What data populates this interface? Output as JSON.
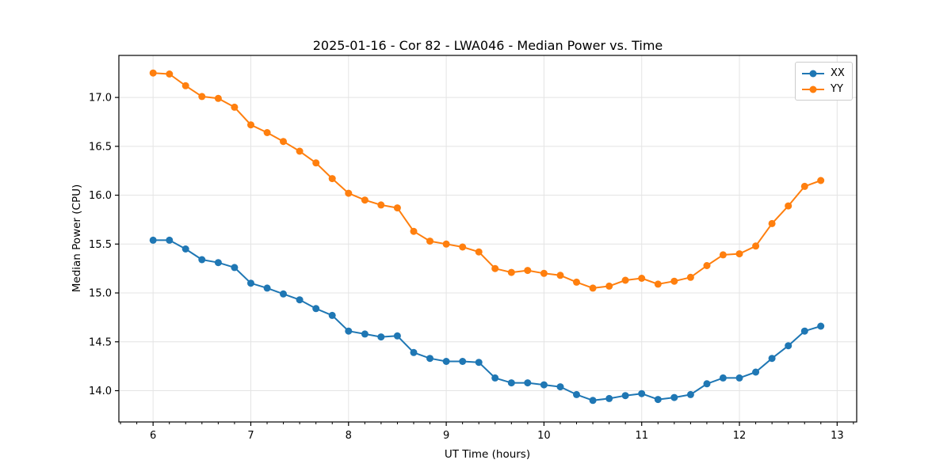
{
  "chart_data": {
    "type": "line",
    "title": "2025-01-16 - Cor 82 - LWA046 - Median Power vs. Time",
    "xlabel": "UT Time (hours)",
    "ylabel": "Median Power (CPU)",
    "xlim": [
      5.65,
      13.2
    ],
    "ylim": [
      13.68,
      17.43
    ],
    "grid": true,
    "legend_position": "upper right",
    "marker": "o",
    "x_ticks": [
      6,
      7,
      8,
      9,
      10,
      11,
      12,
      13
    ],
    "x_tick_labels": [
      "6",
      "7",
      "8",
      "9",
      "10",
      "11",
      "12",
      "13"
    ],
    "x_minor_tick_step": 0.166667,
    "y_ticks": [
      14.0,
      14.5,
      15.0,
      15.5,
      16.0,
      16.5,
      17.0
    ],
    "y_tick_labels": [
      "14.0",
      "14.5",
      "15.0",
      "15.5",
      "16.0",
      "16.5",
      "17.0"
    ],
    "x": [
      6.0,
      6.167,
      6.333,
      6.5,
      6.667,
      6.833,
      7.0,
      7.167,
      7.333,
      7.5,
      7.667,
      7.833,
      8.0,
      8.167,
      8.333,
      8.5,
      8.667,
      8.833,
      9.0,
      9.167,
      9.333,
      9.5,
      9.667,
      9.833,
      10.0,
      10.167,
      10.333,
      10.5,
      10.667,
      10.833,
      11.0,
      11.167,
      11.333,
      11.5,
      11.667,
      11.833,
      12.0,
      12.167,
      12.333,
      12.5,
      12.667,
      12.833
    ],
    "series": [
      {
        "name": "XX",
        "color": "#1f77b4",
        "values": [
          15.54,
          15.54,
          15.45,
          15.34,
          15.31,
          15.26,
          15.1,
          15.05,
          14.99,
          14.93,
          14.84,
          14.77,
          14.61,
          14.58,
          14.55,
          14.56,
          14.39,
          14.33,
          14.3,
          14.3,
          14.29,
          14.13,
          14.08,
          14.08,
          14.06,
          14.04,
          13.96,
          13.9,
          13.92,
          13.95,
          13.97,
          13.91,
          13.93,
          13.96,
          14.07,
          14.13,
          14.13,
          14.19,
          14.33,
          14.46,
          14.61,
          14.66
        ]
      },
      {
        "name": "YY",
        "color": "#ff7f0e",
        "values": [
          17.25,
          17.24,
          17.12,
          17.01,
          16.99,
          16.9,
          16.72,
          16.64,
          16.55,
          16.45,
          16.33,
          16.17,
          16.02,
          15.95,
          15.9,
          15.87,
          15.63,
          15.53,
          15.5,
          15.47,
          15.42,
          15.25,
          15.21,
          15.23,
          15.2,
          15.18,
          15.11,
          15.05,
          15.07,
          15.13,
          15.15,
          15.09,
          15.12,
          15.16,
          15.28,
          15.39,
          15.4,
          15.48,
          15.71,
          15.89,
          16.09,
          16.15
        ]
      }
    ],
    "colors": {
      "grid": "#e4e4e4",
      "spine": "#000000",
      "text": "#000000",
      "background": "#ffffff"
    }
  }
}
